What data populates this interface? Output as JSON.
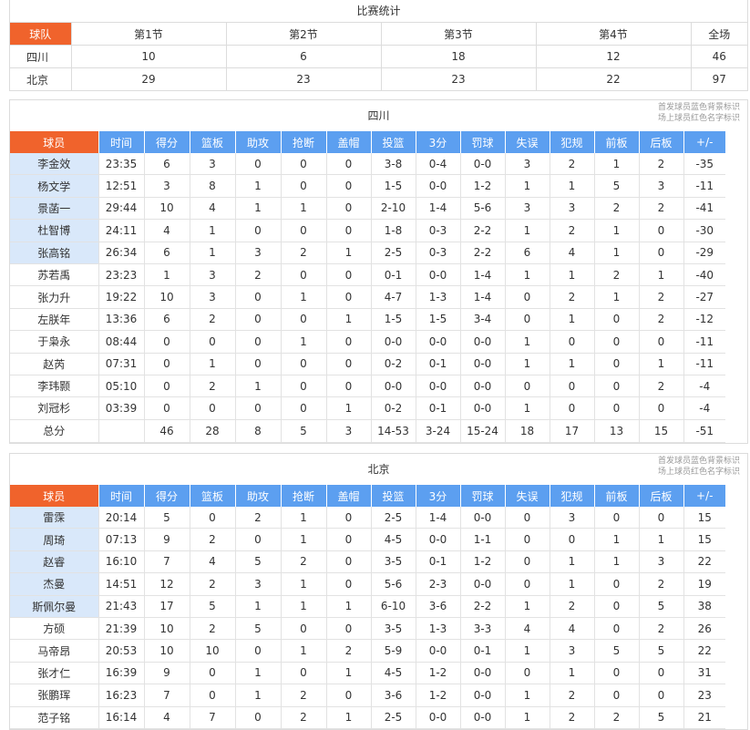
{
  "summary": {
    "title": "比赛统计",
    "headers": [
      "球队",
      "第1节",
      "第2节",
      "第3节",
      "第4节",
      "全场"
    ],
    "rows": [
      [
        "四川",
        "10",
        "6",
        "18",
        "12",
        "46"
      ],
      [
        "北京",
        "29",
        "23",
        "23",
        "22",
        "97"
      ]
    ]
  },
  "legend": {
    "line1": "首发球员蓝色背景标识",
    "line2": "场上球员红色名字标识"
  },
  "columns": [
    "球员",
    "时间",
    "得分",
    "篮板",
    "助攻",
    "抢断",
    "盖帽",
    "投篮",
    "3分",
    "罚球",
    "失误",
    "犯规",
    "前板",
    "后板",
    "+/-"
  ],
  "colors": {
    "accent_orange": "#f0632c",
    "header_blue": "#5c9ff0",
    "starter_bg": "#d9e8fa",
    "oncourt_red": "#e02a2a"
  },
  "teams": [
    {
      "name": "四川",
      "players": [
        {
          "name": "李金效",
          "starter": true,
          "stats": [
            "23:35",
            "6",
            "3",
            "0",
            "0",
            "0",
            "3-8",
            "0-4",
            "0-0",
            "3",
            "2",
            "1",
            "2",
            "-35"
          ]
        },
        {
          "name": "杨文学",
          "starter": true,
          "stats": [
            "12:51",
            "3",
            "8",
            "1",
            "0",
            "0",
            "1-5",
            "0-0",
            "1-2",
            "1",
            "1",
            "5",
            "3",
            "-11"
          ]
        },
        {
          "name": "景菡一",
          "starter": true,
          "stats": [
            "29:44",
            "10",
            "4",
            "1",
            "1",
            "0",
            "2-10",
            "1-4",
            "5-6",
            "3",
            "3",
            "2",
            "2",
            "-41"
          ]
        },
        {
          "name": "杜智博",
          "starter": true,
          "stats": [
            "24:11",
            "4",
            "1",
            "0",
            "0",
            "0",
            "1-8",
            "0-3",
            "2-2",
            "1",
            "2",
            "1",
            "0",
            "-30"
          ]
        },
        {
          "name": "张高铭",
          "starter": true,
          "stats": [
            "26:34",
            "6",
            "1",
            "3",
            "2",
            "1",
            "2-5",
            "0-3",
            "2-2",
            "6",
            "4",
            "1",
            "0",
            "-29"
          ]
        },
        {
          "name": "苏若禹",
          "starter": false,
          "stats": [
            "23:23",
            "1",
            "3",
            "2",
            "0",
            "0",
            "0-1",
            "0-0",
            "1-4",
            "1",
            "1",
            "2",
            "1",
            "-40"
          ]
        },
        {
          "name": "张力升",
          "starter": false,
          "stats": [
            "19:22",
            "10",
            "3",
            "0",
            "1",
            "0",
            "4-7",
            "1-3",
            "1-4",
            "0",
            "2",
            "1",
            "2",
            "-27"
          ]
        },
        {
          "name": "左朕年",
          "starter": false,
          "stats": [
            "13:36",
            "6",
            "2",
            "0",
            "0",
            "1",
            "1-5",
            "1-5",
            "3-4",
            "0",
            "1",
            "0",
            "2",
            "-12"
          ]
        },
        {
          "name": "于枭永",
          "starter": false,
          "stats": [
            "08:44",
            "0",
            "0",
            "0",
            "1",
            "0",
            "0-0",
            "0-0",
            "0-0",
            "1",
            "0",
            "0",
            "0",
            "-11"
          ]
        },
        {
          "name": "赵芮",
          "starter": false,
          "stats": [
            "07:31",
            "0",
            "1",
            "0",
            "0",
            "0",
            "0-2",
            "0-1",
            "0-0",
            "1",
            "1",
            "0",
            "1",
            "-11"
          ]
        },
        {
          "name": "李玮颢",
          "starter": false,
          "stats": [
            "05:10",
            "0",
            "2",
            "1",
            "0",
            "0",
            "0-0",
            "0-0",
            "0-0",
            "0",
            "0",
            "0",
            "2",
            "-4"
          ]
        },
        {
          "name": "刘冠杉",
          "starter": false,
          "stats": [
            "03:39",
            "0",
            "0",
            "0",
            "0",
            "1",
            "0-2",
            "0-1",
            "0-0",
            "1",
            "0",
            "0",
            "0",
            "-4"
          ]
        }
      ],
      "total": {
        "name": "总分",
        "stats": [
          "",
          "46",
          "28",
          "8",
          "5",
          "3",
          "14-53",
          "3-24",
          "15-24",
          "18",
          "17",
          "13",
          "15",
          "-51"
        ]
      }
    },
    {
      "name": "北京",
      "players": [
        {
          "name": "雷霂",
          "starter": true,
          "stats": [
            "20:14",
            "5",
            "0",
            "2",
            "1",
            "0",
            "2-5",
            "1-4",
            "0-0",
            "0",
            "3",
            "0",
            "0",
            "15"
          ]
        },
        {
          "name": "周琦",
          "starter": true,
          "stats": [
            "07:13",
            "9",
            "2",
            "0",
            "1",
            "0",
            "4-5",
            "0-0",
            "1-1",
            "0",
            "0",
            "1",
            "1",
            "15"
          ]
        },
        {
          "name": "赵睿",
          "starter": true,
          "stats": [
            "16:10",
            "7",
            "4",
            "5",
            "2",
            "0",
            "3-5",
            "0-1",
            "1-2",
            "0",
            "1",
            "1",
            "3",
            "22"
          ]
        },
        {
          "name": "杰曼",
          "starter": true,
          "stats": [
            "14:51",
            "12",
            "2",
            "3",
            "1",
            "0",
            "5-6",
            "2-3",
            "0-0",
            "0",
            "1",
            "0",
            "2",
            "19"
          ]
        },
        {
          "name": "斯佩尔曼",
          "starter": true,
          "stats": [
            "21:43",
            "17",
            "5",
            "1",
            "1",
            "1",
            "6-10",
            "3-6",
            "2-2",
            "1",
            "2",
            "0",
            "5",
            "38"
          ]
        },
        {
          "name": "方硕",
          "starter": false,
          "stats": [
            "21:39",
            "10",
            "2",
            "5",
            "0",
            "0",
            "3-5",
            "1-3",
            "3-3",
            "4",
            "4",
            "0",
            "2",
            "26"
          ]
        },
        {
          "name": "马帝昂",
          "starter": false,
          "stats": [
            "20:53",
            "10",
            "10",
            "0",
            "1",
            "2",
            "5-9",
            "0-0",
            "0-1",
            "1",
            "3",
            "5",
            "5",
            "22"
          ]
        },
        {
          "name": "张才仁",
          "starter": false,
          "stats": [
            "16:39",
            "9",
            "0",
            "1",
            "0",
            "1",
            "4-5",
            "1-2",
            "0-0",
            "0",
            "1",
            "0",
            "0",
            "31"
          ]
        },
        {
          "name": "张鹏珲",
          "starter": false,
          "stats": [
            "16:23",
            "7",
            "0",
            "1",
            "2",
            "0",
            "3-6",
            "1-2",
            "0-0",
            "1",
            "2",
            "0",
            "0",
            "23"
          ]
        },
        {
          "name": "范子铭",
          "starter": false,
          "stats": [
            "16:14",
            "4",
            "7",
            "0",
            "2",
            "1",
            "2-5",
            "0-0",
            "0-0",
            "1",
            "2",
            "2",
            "5",
            "21"
          ]
        }
      ]
    }
  ]
}
